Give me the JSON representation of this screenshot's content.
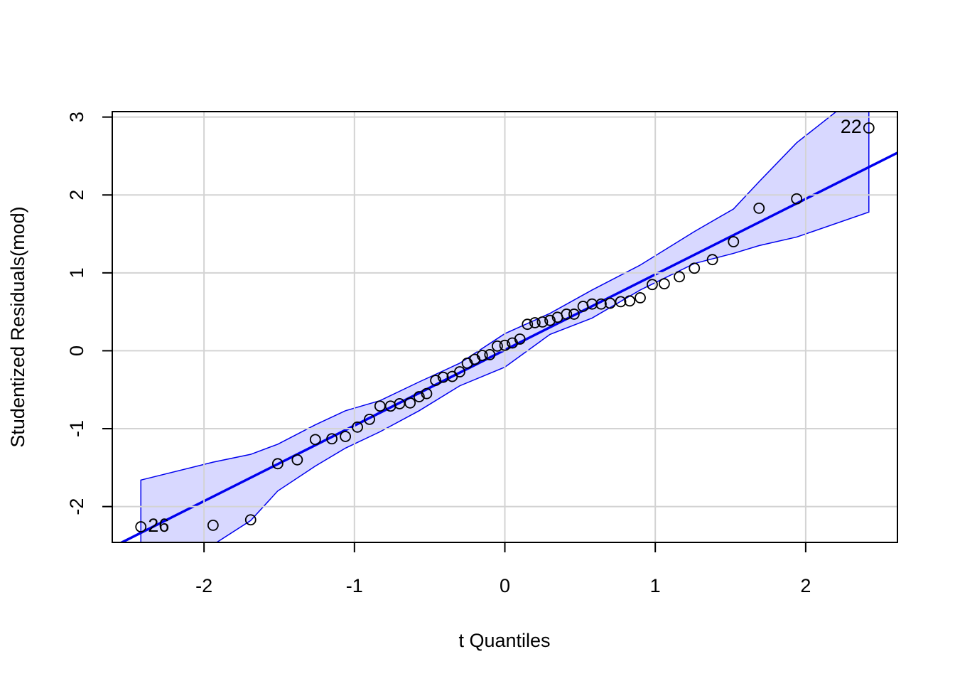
{
  "chart_data": {
    "type": "qqplot",
    "xlabel": "t Quantiles",
    "ylabel": "Studentized Residuals(mod)",
    "xlim": [
      -2.61,
      2.61
    ],
    "ylim": [
      -2.46,
      3.07
    ],
    "xticks": [
      -2,
      -1,
      0,
      1,
      2
    ],
    "yticks": [
      -2,
      -1,
      0,
      1,
      2,
      3
    ],
    "grid": true,
    "point_color": "#000000",
    "x": [
      -2.42,
      -1.94,
      -1.69,
      -1.51,
      -1.38,
      -1.26,
      -1.15,
      -1.06,
      -0.98,
      -0.9,
      -0.83,
      -0.76,
      -0.7,
      -0.63,
      -0.57,
      -0.52,
      -0.46,
      -0.41,
      -0.35,
      -0.3,
      -0.25,
      -0.2,
      -0.15,
      -0.1,
      -0.05,
      0,
      0.05,
      0.1,
      0.15,
      0.2,
      0.25,
      0.3,
      0.35,
      0.41,
      0.46,
      0.52,
      0.58,
      0.64,
      0.7,
      0.77,
      0.83,
      0.9,
      0.98,
      1.06,
      1.16,
      1.26,
      1.38,
      1.52,
      1.69,
      1.94,
      2.42
    ],
    "values": [
      -2.26,
      -2.24,
      -2.17,
      -1.45,
      -1.4,
      -1.14,
      -1.13,
      -1.1,
      -0.98,
      -0.88,
      -0.71,
      -0.71,
      -0.68,
      -0.67,
      -0.59,
      -0.55,
      -0.38,
      -0.34,
      -0.33,
      -0.27,
      -0.16,
      -0.11,
      -0.06,
      -0.05,
      0.06,
      0.07,
      0.1,
      0.15,
      0.34,
      0.36,
      0.37,
      0.39,
      0.43,
      0.47,
      0.47,
      0.57,
      0.6,
      0.6,
      0.61,
      0.63,
      0.64,
      0.68,
      0.85,
      0.86,
      0.95,
      1.06,
      1.17,
      1.4,
      1.83,
      1.95,
      2.86
    ],
    "point_labels": [
      {
        "text": "26",
        "point": 0
      },
      {
        "text": "22",
        "point": 50
      }
    ],
    "fit": {
      "intercept": 0.01,
      "slope": 0.97,
      "color": "#0000ee"
    },
    "envelope": {
      "color": "#0000ee",
      "fill": "#d8d8ff",
      "x": [
        -2.42,
        -1.94,
        -1.69,
        -1.51,
        -1.26,
        -1.06,
        -0.83,
        -0.57,
        -0.3,
        0,
        0.3,
        0.58,
        0.9,
        1.26,
        1.52,
        1.69,
        1.94,
        2.42
      ],
      "upper": [
        -1.66,
        -1.43,
        -1.33,
        -1.2,
        -0.95,
        -0.77,
        -0.64,
        -0.4,
        -0.16,
        0.22,
        0.48,
        0.78,
        1.1,
        1.53,
        1.82,
        2.17,
        2.67,
        3.4
      ],
      "lower": [
        -3.2,
        -2.49,
        -2.18,
        -1.8,
        -1.48,
        -1.25,
        -1.04,
        -0.77,
        -0.45,
        -0.21,
        0.21,
        0.42,
        0.78,
        1.12,
        1.25,
        1.35,
        1.46,
        1.78
      ]
    }
  }
}
